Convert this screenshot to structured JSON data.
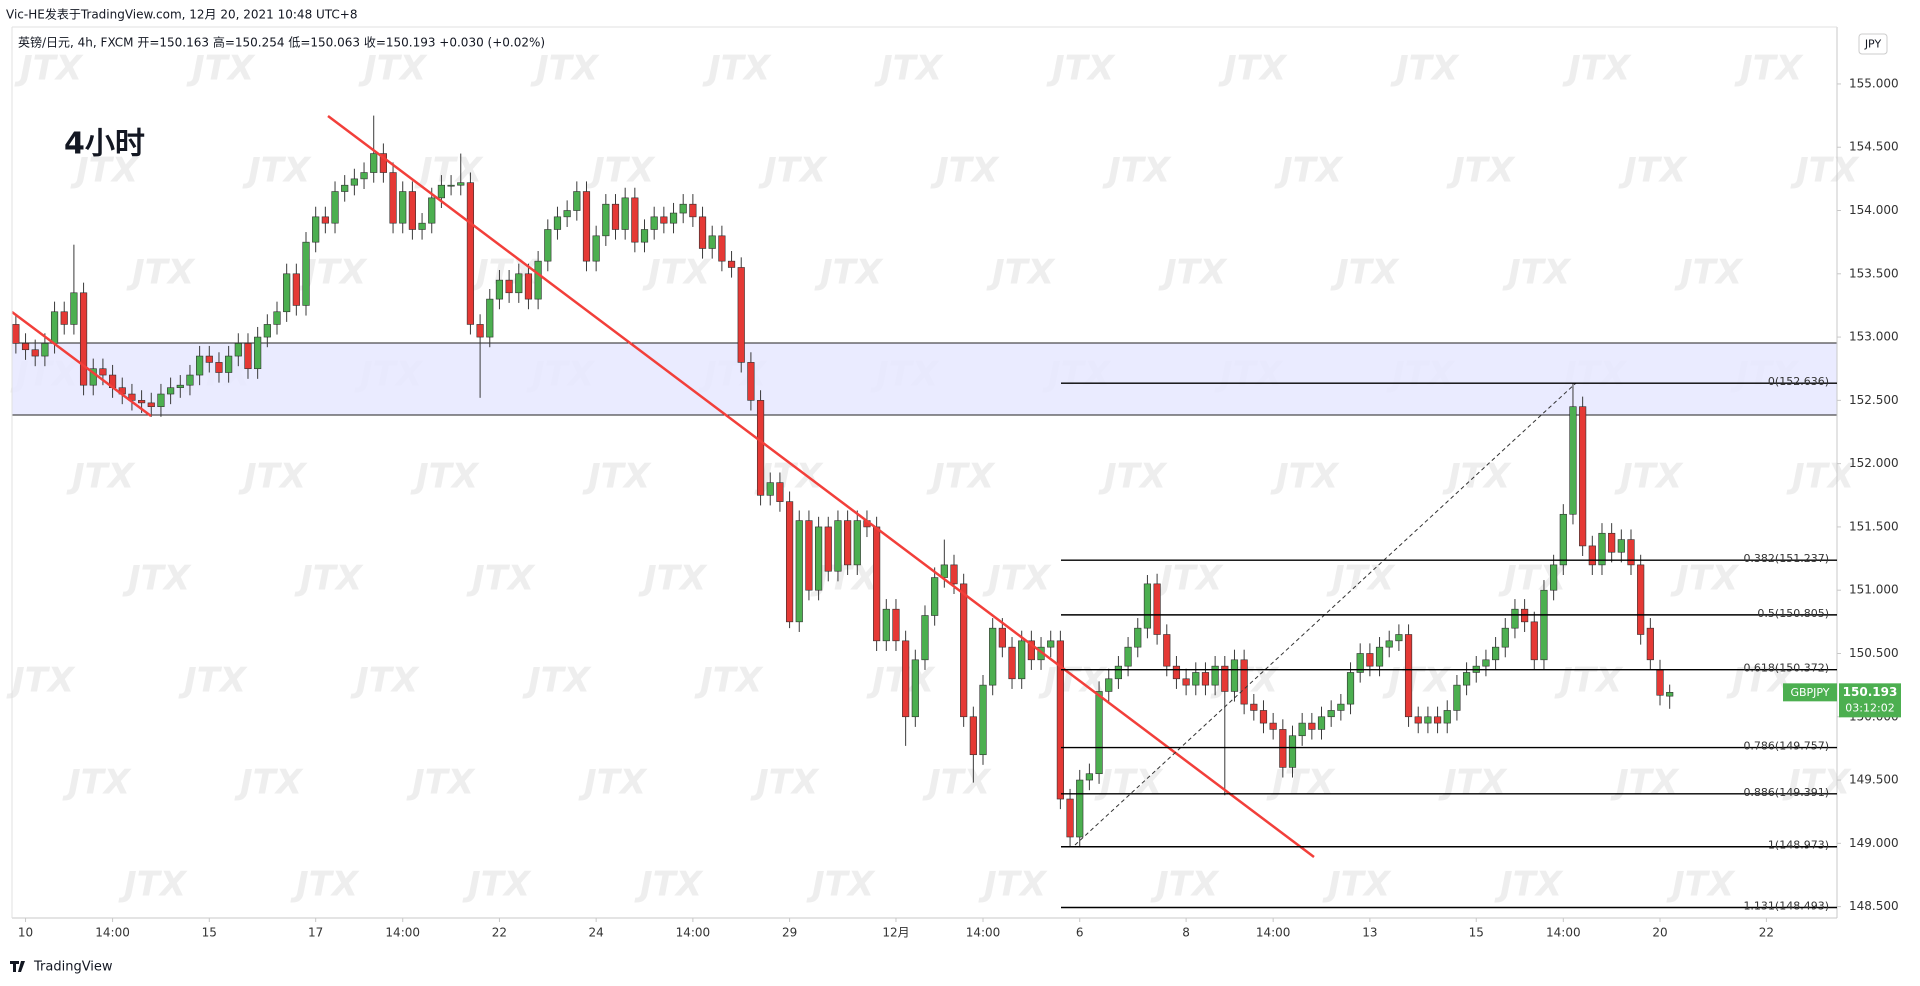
{
  "header": {
    "author_line": "Vic-HE发表于TradingView.com, 12月 20, 2021 10:48 UTC+8",
    "symbol_line": "英镑/日元, 4h, FXCM  开=150.163 高=150.254 低=150.063 收=150.193 +0.030 (+0.02%)"
  },
  "annotation": "4小时",
  "watermark": "JTX",
  "footer": "TradingView",
  "chart_data": {
    "type": "candlestick",
    "currency": "JPY",
    "symbol": "GBPJPY",
    "countdown": "03:12:02",
    "up_color": "#4caf50",
    "down_color": "#e53935",
    "open": [
      153.1,
      152.95,
      152.9,
      152.85,
      152.95,
      153.2,
      153.1,
      153.35,
      152.62,
      152.75,
      152.7,
      152.6,
      152.55,
      152.5,
      152.48,
      152.45,
      152.55,
      152.6,
      152.62,
      152.7,
      152.85,
      152.8,
      152.72,
      152.85,
      152.95,
      152.75,
      153.0,
      153.1,
      153.2,
      153.5,
      153.25,
      153.75,
      153.95,
      153.9,
      154.15,
      154.2,
      154.25,
      154.3,
      154.45,
      154.3,
      153.9,
      154.15,
      153.85,
      153.9,
      154.1,
      154.2,
      154.2,
      154.22,
      153.1,
      153.0,
      153.3,
      153.45,
      153.35,
      153.5,
      153.3,
      153.6,
      153.85,
      153.95,
      154.0,
      154.15,
      153.6,
      153.8,
      154.05,
      153.85,
      154.1,
      153.75,
      153.85,
      153.95,
      153.9,
      153.98,
      154.05,
      153.95,
      153.7,
      153.8,
      153.6,
      153.55,
      152.8,
      152.5,
      151.75,
      151.85,
      151.7,
      150.75,
      151.55,
      151.0,
      151.5,
      151.15,
      151.55,
      151.2,
      151.55,
      151.5,
      150.6,
      150.85,
      150.6,
      150.0,
      150.45,
      150.8,
      151.1,
      151.2,
      151.05,
      150.0,
      149.7,
      150.25,
      150.7,
      150.55,
      150.3,
      150.6,
      150.45,
      150.55,
      150.6,
      149.35,
      149.05,
      149.5,
      149.55,
      150.2,
      150.3,
      150.4,
      150.55,
      150.7,
      151.05,
      150.65,
      150.4,
      150.3,
      150.25,
      150.35,
      150.25,
      150.4,
      150.2,
      150.45,
      150.1,
      150.05,
      149.95,
      149.9,
      149.6,
      149.85,
      149.95,
      149.9,
      150.0,
      150.05,
      150.1,
      150.35,
      150.5,
      150.4,
      150.55,
      150.6,
      150.65,
      150.0,
      149.95,
      150.0,
      149.95,
      150.05,
      150.25,
      150.35,
      150.4,
      150.45,
      150.55,
      150.7,
      150.85,
      150.75,
      150.45,
      151.0,
      151.2,
      151.6,
      152.45,
      151.35,
      151.2,
      151.45,
      151.3,
      151.4,
      151.2,
      150.7,
      150.37,
      150.163
    ],
    "high": [
      153.18,
      153.03,
      152.98,
      153.03,
      153.28,
      153.28,
      153.73,
      153.43,
      152.83,
      152.83,
      152.78,
      152.68,
      152.63,
      152.58,
      152.56,
      152.63,
      152.68,
      152.7,
      152.78,
      152.93,
      152.93,
      152.88,
      152.93,
      153.03,
      153.03,
      153.08,
      153.18,
      153.28,
      153.58,
      153.58,
      153.83,
      154.03,
      154.03,
      154.23,
      154.28,
      154.33,
      154.38,
      154.75,
      154.53,
      154.38,
      154.23,
      154.23,
      153.98,
      154.18,
      154.28,
      154.28,
      154.45,
      154.3,
      153.18,
      153.38,
      153.53,
      153.53,
      153.58,
      153.58,
      153.68,
      153.93,
      154.03,
      154.08,
      154.23,
      154.23,
      153.88,
      154.13,
      154.13,
      154.18,
      154.18,
      153.93,
      154.03,
      154.03,
      154.06,
      154.13,
      154.13,
      154.03,
      153.88,
      153.88,
      153.68,
      153.63,
      152.88,
      152.58,
      151.93,
      151.93,
      151.78,
      151.63,
      151.63,
      151.58,
      151.58,
      151.63,
      151.63,
      151.63,
      151.63,
      151.58,
      150.93,
      150.93,
      150.68,
      150.53,
      150.88,
      151.18,
      151.4,
      151.28,
      151.13,
      150.08,
      150.33,
      150.78,
      150.78,
      150.63,
      150.68,
      150.68,
      150.63,
      150.68,
      150.68,
      149.43,
      149.58,
      149.63,
      150.28,
      150.38,
      150.48,
      150.63,
      150.78,
      151.12,
      151.13,
      150.73,
      150.48,
      150.38,
      150.43,
      150.43,
      150.48,
      150.48,
      150.53,
      150.53,
      150.18,
      150.13,
      150.03,
      149.98,
      149.93,
      150.03,
      150.03,
      150.08,
      150.13,
      150.18,
      150.43,
      150.58,
      150.58,
      150.63,
      150.68,
      150.73,
      150.73,
      150.08,
      150.08,
      150.08,
      150.13,
      150.33,
      150.43,
      150.48,
      150.53,
      150.63,
      150.78,
      150.93,
      150.93,
      150.83,
      151.08,
      151.28,
      151.68,
      152.64,
      152.53,
      151.43,
      151.53,
      151.53,
      151.48,
      151.48,
      151.28,
      150.78,
      150.45,
      150.254
    ],
    "low": [
      152.87,
      152.82,
      152.77,
      152.77,
      152.87,
      153.02,
      153.02,
      152.54,
      152.54,
      152.62,
      152.52,
      152.47,
      152.42,
      152.4,
      152.37,
      152.37,
      152.47,
      152.52,
      152.54,
      152.62,
      152.72,
      152.64,
      152.64,
      152.77,
      152.67,
      152.67,
      152.92,
      153.02,
      153.12,
      153.17,
      153.17,
      153.67,
      153.82,
      153.82,
      154.07,
      154.12,
      154.17,
      154.22,
      154.22,
      153.82,
      153.82,
      153.77,
      153.77,
      153.82,
      154.02,
      154.12,
      154.12,
      153.02,
      152.52,
      152.92,
      153.22,
      153.27,
      153.27,
      153.22,
      153.22,
      153.52,
      153.77,
      153.87,
      153.92,
      153.52,
      153.52,
      153.72,
      153.77,
      153.77,
      153.67,
      153.67,
      153.77,
      153.82,
      153.82,
      153.9,
      153.87,
      153.62,
      153.62,
      153.52,
      153.47,
      152.72,
      152.42,
      151.67,
      151.67,
      151.62,
      150.7,
      150.67,
      150.92,
      150.92,
      151.07,
      151.07,
      151.12,
      151.12,
      151.42,
      150.52,
      150.52,
      150.52,
      149.77,
      149.92,
      150.37,
      150.72,
      151.02,
      150.97,
      149.92,
      149.48,
      149.62,
      150.17,
      150.47,
      150.22,
      150.22,
      150.37,
      150.37,
      150.47,
      149.27,
      148.97,
      148.97,
      149.42,
      149.47,
      150.12,
      150.22,
      150.32,
      150.47,
      150.62,
      150.57,
      150.32,
      150.22,
      150.17,
      150.17,
      150.17,
      150.17,
      149.38,
      150.12,
      150.02,
      149.97,
      149.87,
      149.82,
      149.52,
      149.52,
      149.77,
      149.82,
      149.82,
      149.92,
      149.97,
      150.02,
      150.27,
      150.32,
      150.32,
      150.47,
      150.52,
      149.92,
      149.87,
      149.87,
      149.87,
      149.87,
      149.97,
      150.17,
      150.27,
      150.32,
      150.37,
      150.47,
      150.62,
      150.67,
      150.37,
      150.37,
      150.92,
      151.12,
      151.52,
      151.27,
      151.12,
      151.12,
      151.22,
      151.22,
      151.12,
      150.57,
      150.37,
      150.09,
      150.063
    ],
    "close": [
      152.95,
      152.9,
      152.85,
      152.95,
      153.2,
      153.1,
      153.35,
      152.62,
      152.75,
      152.7,
      152.6,
      152.55,
      152.5,
      152.48,
      152.45,
      152.55,
      152.6,
      152.62,
      152.7,
      152.85,
      152.8,
      152.72,
      152.85,
      152.95,
      152.75,
      153.0,
      153.1,
      153.2,
      153.5,
      153.25,
      153.75,
      153.95,
      153.9,
      154.15,
      154.2,
      154.25,
      154.3,
      154.45,
      154.3,
      153.9,
      154.15,
      153.85,
      153.9,
      154.1,
      154.2,
      154.2,
      154.22,
      153.1,
      153.0,
      153.3,
      153.45,
      153.35,
      153.5,
      153.3,
      153.6,
      153.85,
      153.95,
      154.0,
      154.15,
      153.6,
      153.8,
      154.05,
      153.85,
      154.1,
      153.75,
      153.85,
      153.95,
      153.9,
      153.98,
      154.05,
      153.95,
      153.7,
      153.8,
      153.6,
      153.55,
      152.8,
      152.5,
      151.75,
      151.85,
      151.7,
      150.75,
      151.55,
      151.0,
      151.5,
      151.15,
      151.55,
      151.2,
      151.55,
      151.5,
      150.6,
      150.85,
      150.6,
      150.0,
      150.45,
      150.8,
      151.1,
      151.2,
      151.05,
      150.0,
      149.7,
      150.25,
      150.7,
      150.55,
      150.3,
      150.6,
      150.45,
      150.55,
      150.6,
      149.35,
      149.05,
      149.5,
      149.55,
      150.2,
      150.3,
      150.4,
      150.55,
      150.7,
      151.05,
      150.65,
      150.4,
      150.3,
      150.25,
      150.35,
      150.25,
      150.4,
      150.2,
      150.45,
      150.1,
      150.05,
      149.95,
      149.9,
      149.6,
      149.85,
      149.95,
      149.9,
      150.0,
      150.05,
      150.1,
      150.35,
      150.5,
      150.4,
      150.55,
      150.6,
      150.65,
      150.0,
      149.95,
      150.0,
      149.95,
      150.05,
      150.25,
      150.35,
      150.4,
      150.45,
      150.55,
      150.7,
      150.85,
      150.75,
      150.45,
      151.0,
      151.2,
      151.6,
      152.45,
      151.35,
      151.2,
      151.45,
      151.3,
      151.4,
      151.2,
      150.65,
      150.45,
      150.17,
      150.193
    ],
    "xlim": [
      -0.4,
      188.3
    ],
    "xticks": [
      {
        "value": 1,
        "label": "10"
      },
      {
        "value": 10,
        "label": "14:00"
      },
      {
        "value": 20,
        "label": "15"
      },
      {
        "value": 31,
        "label": "17"
      },
      {
        "value": 40,
        "label": "14:00"
      },
      {
        "value": 50,
        "label": "22"
      },
      {
        "value": 60,
        "label": "24"
      },
      {
        "value": 70,
        "label": "14:00"
      },
      {
        "value": 80,
        "label": "29"
      },
      {
        "value": 91,
        "label": "12月"
      },
      {
        "value": 100,
        "label": "14:00"
      },
      {
        "value": 110,
        "label": "6"
      },
      {
        "value": 121,
        "label": "8"
      },
      {
        "value": 130,
        "label": "14:00"
      },
      {
        "value": 140,
        "label": "13"
      },
      {
        "value": 151,
        "label": "15"
      },
      {
        "value": 160,
        "label": "14:00"
      },
      {
        "value": 170,
        "label": "20"
      },
      {
        "value": 181,
        "label": "22"
      }
    ],
    "ylim": [
      148.41,
      155.45
    ],
    "yticks": [
      {
        "value": 148.5,
        "label": "148.500"
      },
      {
        "value": 149,
        "label": "149.000"
      },
      {
        "value": 149.5,
        "label": "149.500"
      },
      {
        "value": 150,
        "label": "150.000"
      },
      {
        "value": 150.5,
        "label": "150.500"
      },
      {
        "value": 151,
        "label": "151.000"
      },
      {
        "value": 151.5,
        "label": "151.500"
      },
      {
        "value": 152,
        "label": "152.000"
      },
      {
        "value": 152.5,
        "label": "152.500"
      },
      {
        "value": 153,
        "label": "153.000"
      },
      {
        "value": 153.5,
        "label": "153.500"
      },
      {
        "value": 154,
        "label": "154.000"
      },
      {
        "value": 154.5,
        "label": "154.500"
      },
      {
        "value": 155,
        "label": "155.000"
      }
    ],
    "fib_color": "#000000",
    "fib_levels": [
      {
        "value": 152.636,
        "label": "0(152.636)"
      },
      {
        "value": 151.237,
        "label": "0.382(151.237)"
      },
      {
        "value": 150.805,
        "label": "0.5(150.805)"
      },
      {
        "value": 150.372,
        "label": "0.618(150.372)"
      },
      {
        "value": 149.757,
        "label": "0.786(149.757)"
      },
      {
        "value": 149.391,
        "label": "0.886(149.391)"
      },
      {
        "value": 148.973,
        "label": "1(148.973)"
      },
      {
        "value": 148.493,
        "label": "1.131(148.493)"
      }
    ]
  }
}
